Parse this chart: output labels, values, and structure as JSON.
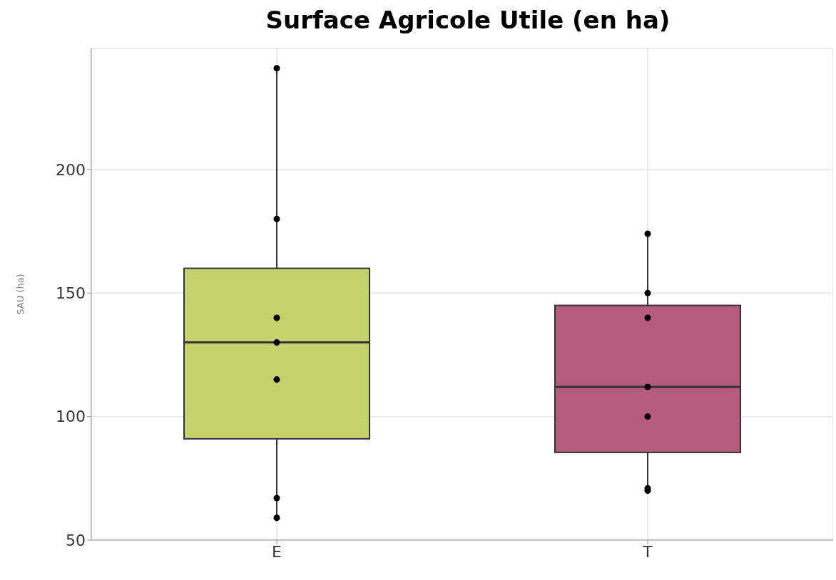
{
  "chart_data": {
    "type": "box",
    "title": "Surface Agricole Utile (en ha)",
    "ylabel": "SAU (ha)",
    "categories": [
      "E",
      "T"
    ],
    "series": [
      {
        "colors": [
          "#c5d16a",
          "#b55c7c"
        ],
        "boxes": [
          {
            "low": 59,
            "q1": 91,
            "median": 130,
            "q3": 160,
            "high": 241
          },
          {
            "low": 70,
            "q1": 85.5,
            "median": 112,
            "q3": 145,
            "high": 174
          }
        ]
      },
      {
        "type": "scatter",
        "color": "#000000",
        "x": [
          "E",
          "E",
          "E",
          "E",
          "E",
          "E",
          "E",
          "T",
          "T",
          "T",
          "T",
          "T",
          "T",
          "T"
        ],
        "values": [
          241,
          180,
          140,
          130,
          115,
          67,
          59,
          174,
          150,
          140,
          112,
          100,
          71,
          70
        ]
      }
    ],
    "ylim": [
      50,
      249
    ],
    "yticks": [
      50,
      100,
      150,
      200
    ],
    "grid": true,
    "marker": "circle"
  }
}
